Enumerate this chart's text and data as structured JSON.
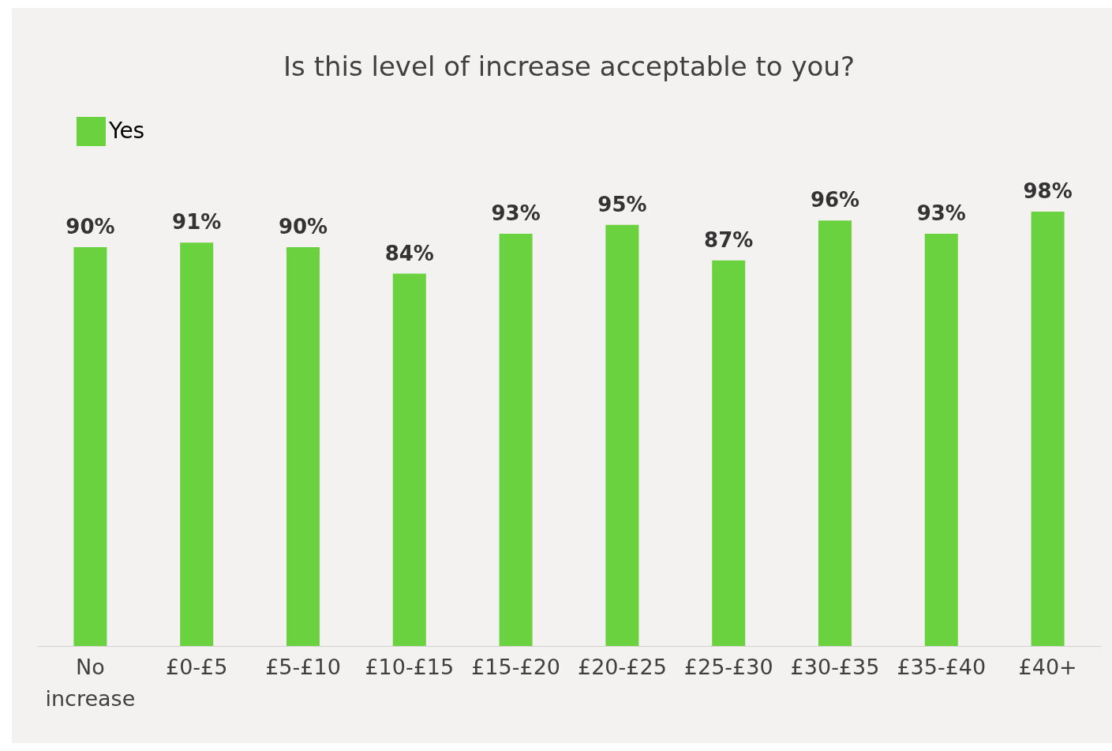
{
  "chart_data": {
    "type": "bar",
    "title": "Is this level of increase acceptable to you?",
    "categories": [
      "No increase",
      "£0-£5",
      "£5-£10",
      "£10-£15",
      "£15-£20",
      "£20-£25",
      "£25-£30",
      "£30-£35",
      "£35-£40",
      "£40+"
    ],
    "series": [
      {
        "name": "Yes",
        "color": "#6ad13f",
        "values": [
          90,
          91,
          90,
          84,
          93,
          95,
          87,
          96,
          93,
          98
        ],
        "value_labels": [
          "90%",
          "91%",
          "90%",
          "84%",
          "93%",
          "95%",
          "87%",
          "96%",
          "93%",
          "98%"
        ]
      }
    ],
    "legend": "top left",
    "grid": false
  }
}
